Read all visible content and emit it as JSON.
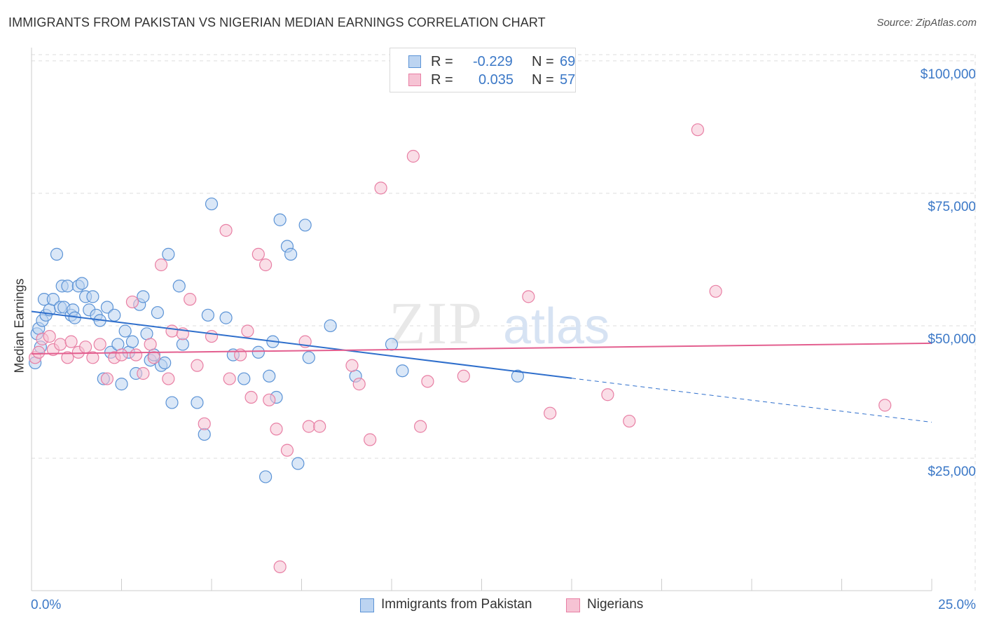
{
  "header": {
    "title": "IMMIGRANTS FROM PAKISTAN VS NIGERIAN MEDIAN EARNINGS CORRELATION CHART",
    "source": "Source: ZipAtlas.com"
  },
  "legend": {
    "r_label": "R =",
    "n_label": "N =",
    "rows": [
      {
        "r": "-0.229",
        "n": "69",
        "color": "#5b93d6"
      },
      {
        "r": "0.035",
        "n": "57",
        "color": "#e87fa4"
      }
    ]
  },
  "bottom_legend": [
    {
      "label": "Immigrants from Pakistan"
    },
    {
      "label": "Nigerians"
    }
  ],
  "colors": {
    "blue": "#5b93d6",
    "blue_fill": "#bcd4f1",
    "blue_line": "#2f6fcc",
    "pink": "#e87fa4",
    "pink_fill": "#f6c3d4",
    "pink_line": "#e35f8f",
    "tick_label": "#3b78c7",
    "grid": "#dddddd"
  },
  "chart_data": {
    "type": "scatter",
    "ylabel": "Median Earnings",
    "xlim": [
      0,
      25
    ],
    "ylim": [
      0,
      102500
    ],
    "x_tick_labels": [
      "0.0%",
      "25.0%"
    ],
    "y_ticks": [
      {
        "value": 25000,
        "label": "$25,000"
      },
      {
        "value": 50000,
        "label": "$50,000"
      },
      {
        "value": 75000,
        "label": "$75,000"
      },
      {
        "value": 100000,
        "label": "$100,000"
      }
    ],
    "watermark": {
      "zip": "ZIP",
      "atlas": "atlas"
    },
    "series": [
      {
        "name": "Immigrants from Pakistan",
        "trend": {
          "x0": 0.0,
          "y0": 52700,
          "x1": 15.0,
          "y1": 40100,
          "dash_to": 25.0,
          "dash_y": 31800
        },
        "points": [
          [
            0.1,
            43000
          ],
          [
            0.15,
            48500
          ],
          [
            0.2,
            49500
          ],
          [
            0.3,
            51000
          ],
          [
            0.35,
            55000
          ],
          [
            0.4,
            52000
          ],
          [
            0.5,
            53000
          ],
          [
            0.6,
            55000
          ],
          [
            0.7,
            63500
          ],
          [
            0.8,
            53500
          ],
          [
            0.85,
            57500
          ],
          [
            0.9,
            53500
          ],
          [
            1.0,
            57500
          ],
          [
            1.1,
            52000
          ],
          [
            1.15,
            53000
          ],
          [
            1.3,
            57500
          ],
          [
            1.4,
            58000
          ],
          [
            1.5,
            55500
          ],
          [
            1.6,
            53000
          ],
          [
            1.7,
            55500
          ],
          [
            1.8,
            52000
          ],
          [
            1.9,
            51000
          ],
          [
            2.1,
            53500
          ],
          [
            2.2,
            45000
          ],
          [
            2.3,
            52000
          ],
          [
            2.4,
            46500
          ],
          [
            2.5,
            39000
          ],
          [
            2.6,
            49000
          ],
          [
            2.7,
            45000
          ],
          [
            2.8,
            47000
          ],
          [
            2.9,
            41000
          ],
          [
            3.0,
            54000
          ],
          [
            3.1,
            55500
          ],
          [
            3.2,
            48500
          ],
          [
            3.3,
            43500
          ],
          [
            3.4,
            44500
          ],
          [
            3.5,
            52500
          ],
          [
            3.6,
            42500
          ],
          [
            3.7,
            43000
          ],
          [
            3.8,
            63500
          ],
          [
            3.9,
            35500
          ],
          [
            4.1,
            57500
          ],
          [
            4.2,
            46500
          ],
          [
            4.6,
            35500
          ],
          [
            4.8,
            29500
          ],
          [
            4.9,
            52000
          ],
          [
            5.0,
            73000
          ],
          [
            5.4,
            51500
          ],
          [
            5.6,
            44500
          ],
          [
            5.9,
            40000
          ],
          [
            6.3,
            45000
          ],
          [
            6.5,
            21500
          ],
          [
            6.6,
            40500
          ],
          [
            6.7,
            47000
          ],
          [
            6.8,
            36500
          ],
          [
            6.9,
            70000
          ],
          [
            7.1,
            65000
          ],
          [
            7.2,
            63500
          ],
          [
            7.4,
            24000
          ],
          [
            7.6,
            69000
          ],
          [
            7.7,
            44000
          ],
          [
            8.3,
            50000
          ],
          [
            9.0,
            40500
          ],
          [
            10.0,
            46500
          ],
          [
            10.3,
            41500
          ],
          [
            13.5,
            40500
          ],
          [
            2.0,
            40000
          ],
          [
            1.2,
            51500
          ],
          [
            0.25,
            46000
          ]
        ]
      },
      {
        "name": "Nigerians",
        "trend": {
          "x0": 0.0,
          "y0": 44700,
          "x1": 25.0,
          "y1": 46700
        },
        "points": [
          [
            0.1,
            44000
          ],
          [
            0.2,
            45000
          ],
          [
            0.3,
            47500
          ],
          [
            0.5,
            48000
          ],
          [
            0.6,
            45500
          ],
          [
            0.8,
            46500
          ],
          [
            1.0,
            44000
          ],
          [
            1.1,
            47000
          ],
          [
            1.3,
            45000
          ],
          [
            1.5,
            46000
          ],
          [
            1.7,
            44000
          ],
          [
            1.9,
            46500
          ],
          [
            2.1,
            40000
          ],
          [
            2.3,
            44000
          ],
          [
            2.5,
            44500
          ],
          [
            2.8,
            54500
          ],
          [
            2.9,
            44500
          ],
          [
            3.1,
            41000
          ],
          [
            3.3,
            46500
          ],
          [
            3.4,
            44000
          ],
          [
            3.6,
            61500
          ],
          [
            3.8,
            40000
          ],
          [
            3.9,
            49000
          ],
          [
            4.2,
            48500
          ],
          [
            4.4,
            55000
          ],
          [
            4.6,
            42500
          ],
          [
            4.8,
            31500
          ],
          [
            5.0,
            48000
          ],
          [
            5.4,
            68000
          ],
          [
            5.5,
            40000
          ],
          [
            5.8,
            44500
          ],
          [
            6.0,
            49000
          ],
          [
            6.1,
            36500
          ],
          [
            6.3,
            63500
          ],
          [
            6.5,
            61500
          ],
          [
            6.6,
            36000
          ],
          [
            6.8,
            30500
          ],
          [
            6.9,
            4500
          ],
          [
            7.1,
            26500
          ],
          [
            7.6,
            47000
          ],
          [
            7.7,
            31000
          ],
          [
            8.0,
            31000
          ],
          [
            8.9,
            42500
          ],
          [
            9.1,
            39000
          ],
          [
            9.4,
            28500
          ],
          [
            9.7,
            76000
          ],
          [
            10.6,
            82000
          ],
          [
            10.8,
            31000
          ],
          [
            11.0,
            39500
          ],
          [
            12.0,
            40500
          ],
          [
            13.8,
            55500
          ],
          [
            14.4,
            33500
          ],
          [
            16.0,
            37000
          ],
          [
            16.6,
            32000
          ],
          [
            18.5,
            87000
          ],
          [
            19.0,
            56500
          ],
          [
            23.7,
            35000
          ]
        ]
      }
    ]
  }
}
